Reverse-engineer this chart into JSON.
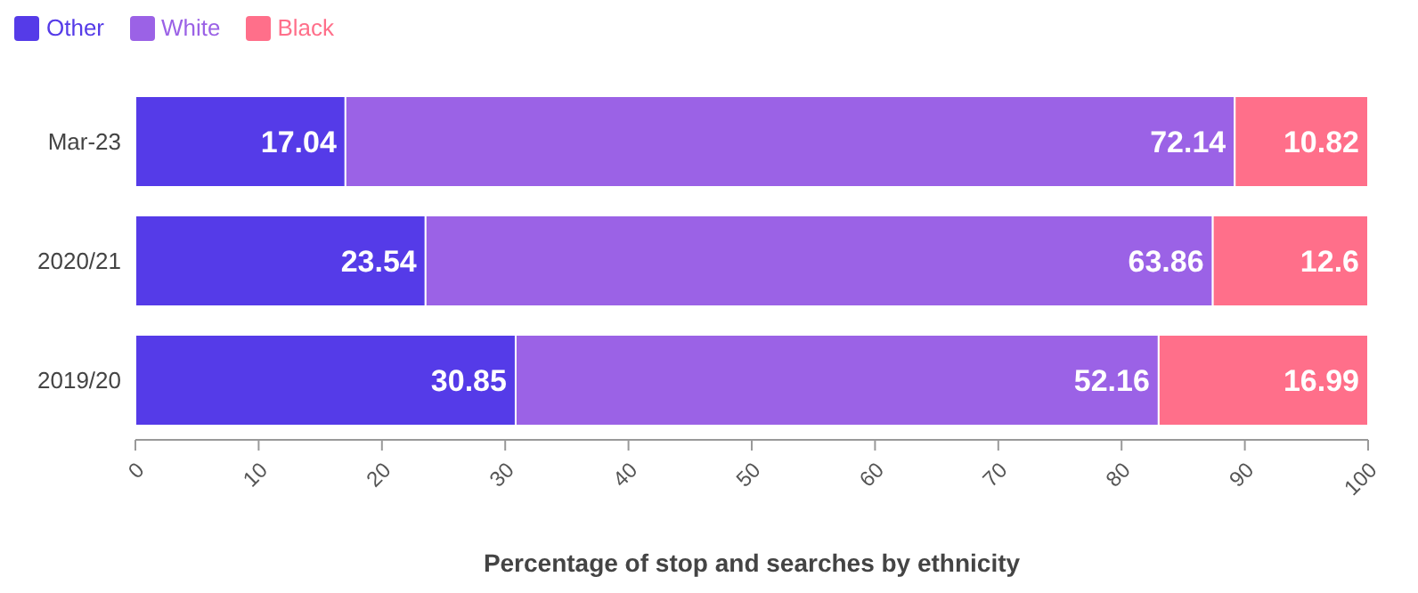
{
  "chart_data": {
    "type": "bar",
    "orientation": "horizontal",
    "stacked": true,
    "xlabel": "Percentage of stop and searches by ethnicity",
    "categories": [
      "Mar-23",
      "2020/21",
      "2019/20"
    ],
    "series": [
      {
        "name": "Other",
        "color": "#553be8",
        "values": [
          17.04,
          23.54,
          30.85
        ]
      },
      {
        "name": "White",
        "color": "#9b62e6",
        "values": [
          72.14,
          63.86,
          52.16
        ]
      },
      {
        "name": "Black",
        "color": "#ff6f8a",
        "values": [
          10.82,
          12.6,
          16.99
        ]
      }
    ],
    "xlim": [
      0,
      100
    ],
    "xticks": [
      0,
      10,
      20,
      30,
      40,
      50,
      60,
      70,
      80,
      90,
      100
    ],
    "data_labels": true,
    "legend": "top left",
    "grid": false
  }
}
